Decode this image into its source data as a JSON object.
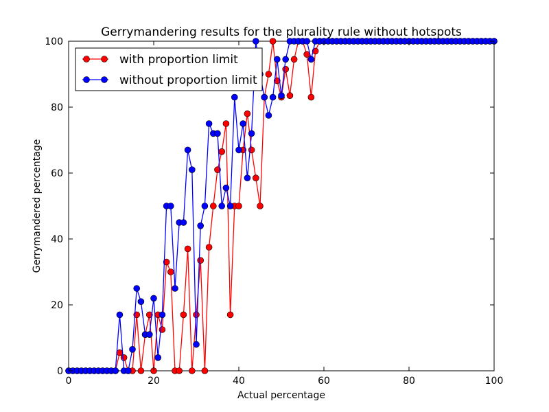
{
  "chart_data": {
    "type": "line",
    "title": "Gerrymandering results for the plurality rule without hotspots",
    "xlabel": "Actual percentage",
    "ylabel": "Gerrymandered percentage",
    "xlim": [
      0,
      100
    ],
    "ylim": [
      0,
      100
    ],
    "xticks": [
      "0",
      "20",
      "40",
      "60",
      "80",
      "100"
    ],
    "yticks": [
      "0",
      "20",
      "40",
      "60",
      "80",
      "100"
    ],
    "legend_position": "top-left",
    "grid": false,
    "x": [
      0,
      1,
      2,
      3,
      4,
      5,
      6,
      7,
      8,
      9,
      10,
      11,
      12,
      13,
      14,
      15,
      16,
      17,
      18,
      19,
      20,
      21,
      22,
      23,
      24,
      25,
      26,
      27,
      28,
      29,
      30,
      31,
      32,
      33,
      34,
      35,
      36,
      37,
      38,
      39,
      40,
      41,
      42,
      43,
      44,
      45,
      46,
      47,
      48,
      49,
      50,
      51,
      52,
      53,
      54,
      55,
      56,
      57,
      58,
      59,
      60,
      61,
      62,
      63,
      64,
      65,
      66,
      67,
      68,
      69,
      70,
      71,
      72,
      73,
      74,
      75,
      76,
      77,
      78,
      79,
      80,
      81,
      82,
      83,
      84,
      85,
      86,
      87,
      88,
      89,
      90,
      91,
      92,
      93,
      94,
      95,
      96,
      97,
      98,
      99,
      100
    ],
    "series": [
      {
        "name": "with proportion limit",
        "color": "#ff0000",
        "values": [
          0,
          0,
          0,
          0,
          0,
          0,
          0,
          0,
          0,
          0,
          0,
          0,
          5.5,
          4,
          0,
          0,
          17,
          0,
          11,
          17,
          0,
          17,
          12.5,
          33,
          30,
          0,
          0,
          17,
          37,
          0,
          17,
          33.5,
          0,
          37.5,
          50,
          61,
          66.5,
          75,
          17,
          50,
          50,
          67,
          78,
          67,
          58.5,
          50,
          83,
          90,
          100,
          88,
          83,
          91.5,
          83.5,
          94.5,
          100,
          100,
          96,
          83,
          97,
          100,
          100,
          100,
          100,
          100,
          100,
          100,
          100,
          100,
          100,
          100,
          100,
          100,
          100,
          100,
          100,
          100,
          100,
          100,
          100,
          100,
          100,
          100,
          100,
          100,
          100,
          100,
          100,
          100,
          100,
          100,
          100,
          100,
          100,
          100,
          100,
          100,
          100,
          100,
          100,
          100,
          100
        ]
      },
      {
        "name": "without proportion limit",
        "color": "#0000ff",
        "values": [
          0,
          0,
          0,
          0,
          0,
          0,
          0,
          0,
          0,
          0,
          0,
          0,
          17,
          0,
          0,
          6.5,
          25,
          21,
          11,
          11,
          22,
          4,
          17,
          50,
          50,
          25,
          45,
          45,
          67,
          61,
          8,
          44,
          50,
          75,
          72,
          72,
          50,
          55.5,
          50,
          83,
          67,
          75,
          58.5,
          72,
          100,
          90,
          83,
          77.5,
          83,
          94.5,
          83.5,
          94.5,
          100,
          100,
          100,
          100,
          100,
          94.5,
          100,
          100,
          100,
          100,
          100,
          100,
          100,
          100,
          100,
          100,
          100,
          100,
          100,
          100,
          100,
          100,
          100,
          100,
          100,
          100,
          100,
          100,
          100,
          100,
          100,
          100,
          100,
          100,
          100,
          100,
          100,
          100,
          100,
          100,
          100,
          100,
          100,
          100,
          100,
          100,
          100,
          100,
          100
        ]
      }
    ]
  }
}
